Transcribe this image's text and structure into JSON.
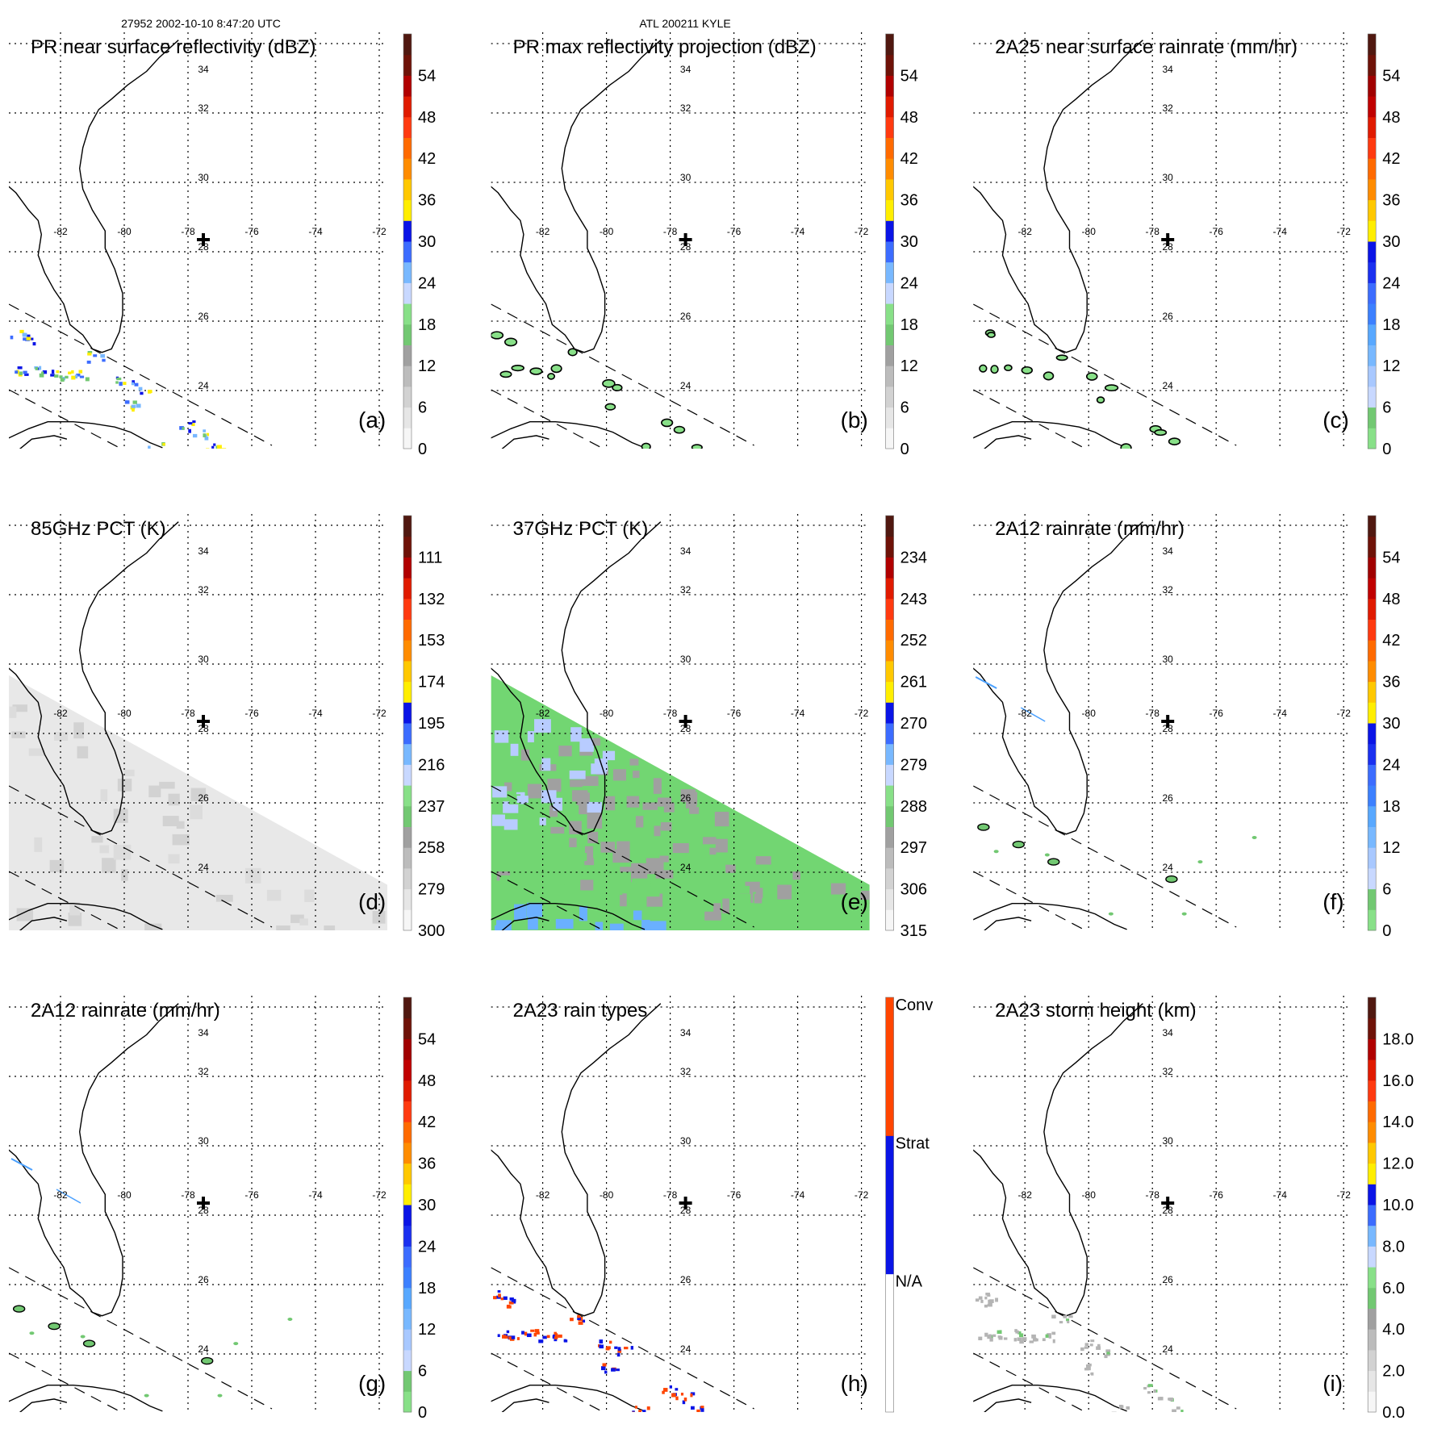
{
  "header": {
    "orbit_time": "27952 2002-10-10 8:47:20 UTC",
    "storm": "ATL 200211 KYLE"
  },
  "lon_labels": [
    "-82",
    "-80",
    "-78",
    "-76",
    "-74",
    "-72"
  ],
  "lat_labels": [
    "34",
    "32",
    "30",
    "28",
    "26",
    "24"
  ],
  "palettes": {
    "reflect": [
      "#f6f6f6",
      "#e6e6e6",
      "#d2d2d2",
      "#bcbcbc",
      "#a0a0a0",
      "#72c872",
      "#88e088",
      "#c8d8ff",
      "#78b8ff",
      "#3c6cff",
      "#0a14e6",
      "#ffee00",
      "#ffc800",
      "#ff8c00",
      "#ff6a00",
      "#ff3a10",
      "#e01a00",
      "#b00000",
      "#6e1208",
      "#501810"
    ],
    "rain": [
      "#88e088",
      "#72c872",
      "#c8d8ff",
      "#a8c8ff",
      "#78b8ff",
      "#58a8ff",
      "#3c80ff",
      "#3c6cff",
      "#1a30f0",
      "#0a14e6",
      "#ffee00",
      "#ffc800",
      "#ff8c00",
      "#ff6a00",
      "#ff3a10",
      "#e01a00",
      "#c00000",
      "#a00000",
      "#6e1208",
      "#501810"
    ],
    "types": [
      "#ffffff",
      "#0a14e6",
      "#ff4500"
    ]
  },
  "panels": [
    {
      "id": "a",
      "title": "PR near surface reflectivity (dBZ)",
      "letter": "(a)",
      "palette": "reflect",
      "labels": [
        "0",
        "6",
        "12",
        "18",
        "24",
        "30",
        "36",
        "42",
        "48",
        "54"
      ],
      "overlay": "reflect"
    },
    {
      "id": "b",
      "title": "PR max reflectivity projection (dBZ)",
      "letter": "(b)",
      "palette": "reflect",
      "labels": [
        "0",
        "6",
        "12",
        "18",
        "24",
        "30",
        "36",
        "42",
        "48",
        "54"
      ],
      "overlay": "contour"
    },
    {
      "id": "c",
      "title": "2A25 near surface rainrate (mm/hr)",
      "letter": "(c)",
      "palette": "rain",
      "labels": [
        "0",
        "6",
        "12",
        "18",
        "24",
        "30",
        "36",
        "42",
        "48",
        "54"
      ],
      "overlay": "contour"
    },
    {
      "id": "d",
      "title": "85GHz PCT (K)",
      "letter": "(d)",
      "palette": "reflect",
      "labels": [
        "300",
        "279",
        "258",
        "237",
        "216",
        "195",
        "174",
        "153",
        "132",
        "111"
      ],
      "overlay": "pct85"
    },
    {
      "id": "e",
      "title": "37GHz PCT (K)",
      "letter": "(e)",
      "palette": "reflect",
      "labels": [
        "315",
        "306",
        "297",
        "288",
        "279",
        "270",
        "261",
        "252",
        "243",
        "234"
      ],
      "overlay": "pct37"
    },
    {
      "id": "f",
      "title": "2A12 rainrate (mm/hr)",
      "letter": "(f)",
      "palette": "rain",
      "labels": [
        "0",
        "6",
        "12",
        "18",
        "24",
        "30",
        "36",
        "42",
        "48",
        "54"
      ],
      "overlay": "tmi"
    },
    {
      "id": "g",
      "title": "2A12 rainrate (mm/hr)",
      "letter": "(g)",
      "palette": "rain",
      "labels": [
        "0",
        "6",
        "12",
        "18",
        "24",
        "30",
        "36",
        "42",
        "48",
        "54"
      ],
      "overlay": "tmi"
    },
    {
      "id": "h",
      "title": "2A23 rain types",
      "letter": "(h)",
      "palette": "types",
      "labels": [
        "N/A",
        "Strat",
        "Conv"
      ],
      "overlay": "types"
    },
    {
      "id": "i",
      "title": "2A23 storm height (km)",
      "letter": "(i)",
      "palette": "reflect",
      "labels": [
        "0.0",
        "2.0",
        "4.0",
        "6.0",
        "8.0",
        "10.0",
        "12.0",
        "14.0",
        "16.0",
        "18.0"
      ],
      "overlay": "height"
    }
  ]
}
